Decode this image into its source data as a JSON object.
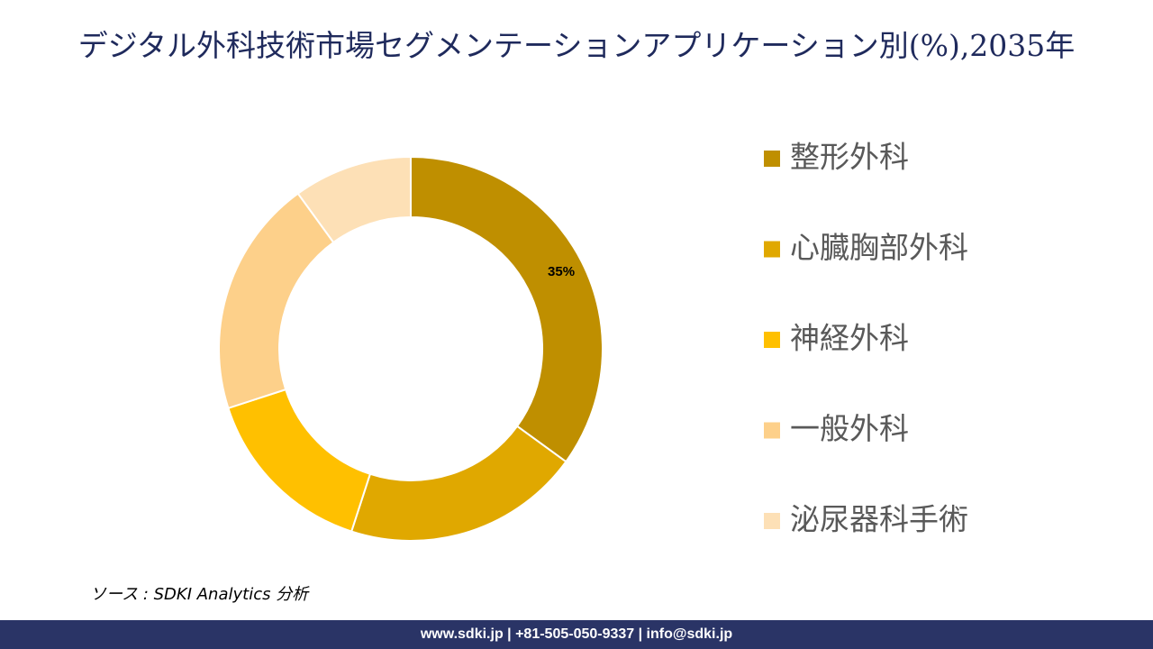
{
  "chart_data": {
    "type": "donut",
    "title": "デジタル外科技術市場セグメンテーションアプリケーション別(%),2035年",
    "categories": [
      "整形外科",
      "心臓胸部外科",
      "神経外科",
      "一般外科",
      "泌尿器科手術"
    ],
    "values": [
      35,
      20,
      15,
      20,
      10
    ],
    "value_labels": [
      "35%",
      null,
      null,
      null,
      null
    ],
    "colors": [
      "#bf8f00",
      "#e0a800",
      "#ffc000",
      "#fdd08a",
      "#fde0b6"
    ]
  },
  "source": "ソース : SDKI Analytics 分析",
  "footer": "www.sdki.jp | +81-505-050-9337 | info@sdki.jp"
}
